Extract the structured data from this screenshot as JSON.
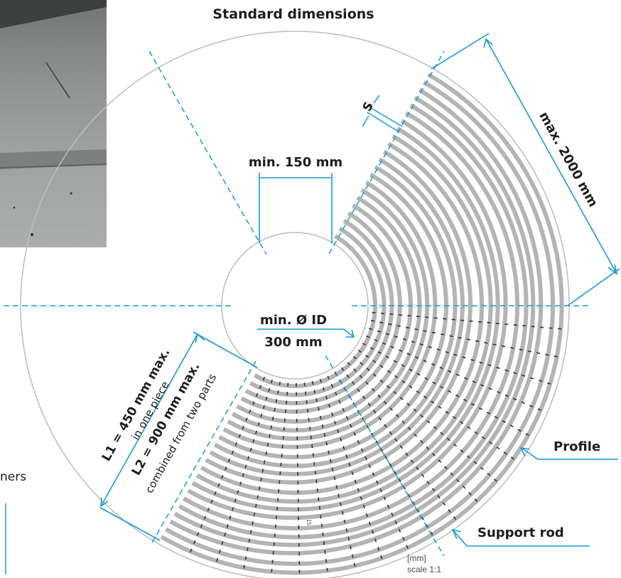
{
  "title": "Standard dimensions",
  "dimensions": {
    "min_gap": "min. 150 mm",
    "bearing_spacing_label": "S",
    "max_length": "max. 2000 mm",
    "min_id_line1": "min. Ø ID",
    "min_id_line2": "300 mm",
    "l1_main": "L1 = 450 mm max.",
    "l1_sub": "in one piece",
    "l2_main": "L2 = 900 mm max.",
    "l2_sub": "combined from two parts"
  },
  "callouts": {
    "profile": "Profile",
    "support_rod": "Support rod"
  },
  "footnotes": {
    "partial_text": "ners",
    "scale_tick": "15",
    "unit": "[mm]",
    "scale": "scale 1:1"
  },
  "colors": {
    "accent": "#1a9ad6",
    "grating": "#b4b4b4",
    "outline": "#bdbdbd",
    "rod": "#333333"
  }
}
